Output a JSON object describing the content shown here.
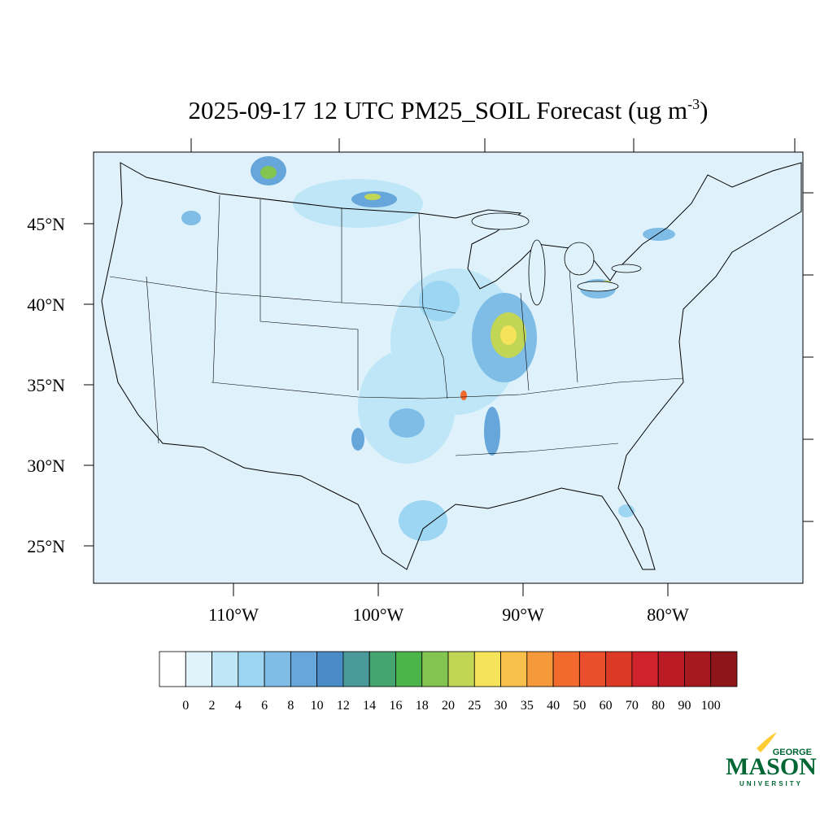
{
  "title": {
    "main": "2025-09-17 12 UTC PM25_SOIL Forecast (ug m",
    "superscript": "-3",
    "end": ")"
  },
  "map": {
    "lat_labels": [
      "45°N",
      "40°N",
      "35°N",
      "30°N",
      "25°N"
    ],
    "lon_labels": [
      "110°W",
      "100°W",
      "90°W",
      "80°W"
    ]
  },
  "colorbar": {
    "levels": [
      0,
      2,
      4,
      6,
      8,
      10,
      12,
      14,
      16,
      18,
      20,
      25,
      30,
      35,
      40,
      50,
      60,
      70,
      80,
      90,
      100
    ],
    "colors": [
      "#ffffff",
      "#e0f3fb",
      "#bfe6f7",
      "#9dd6f2",
      "#7fbde6",
      "#66a6da",
      "#4a8cc8",
      "#4a9a9a",
      "#45a570",
      "#4cb549",
      "#84c450",
      "#c2d655",
      "#f5e35a",
      "#f8c04a",
      "#f6993b",
      "#f26a2e",
      "#e84f2a",
      "#dd3a26",
      "#d0222a",
      "#bb1b25",
      "#a5191f",
      "#8e161a"
    ]
  },
  "logo": {
    "top": "GEORGE",
    "main": "MASON",
    "bottom": "UNIVERSITY"
  }
}
